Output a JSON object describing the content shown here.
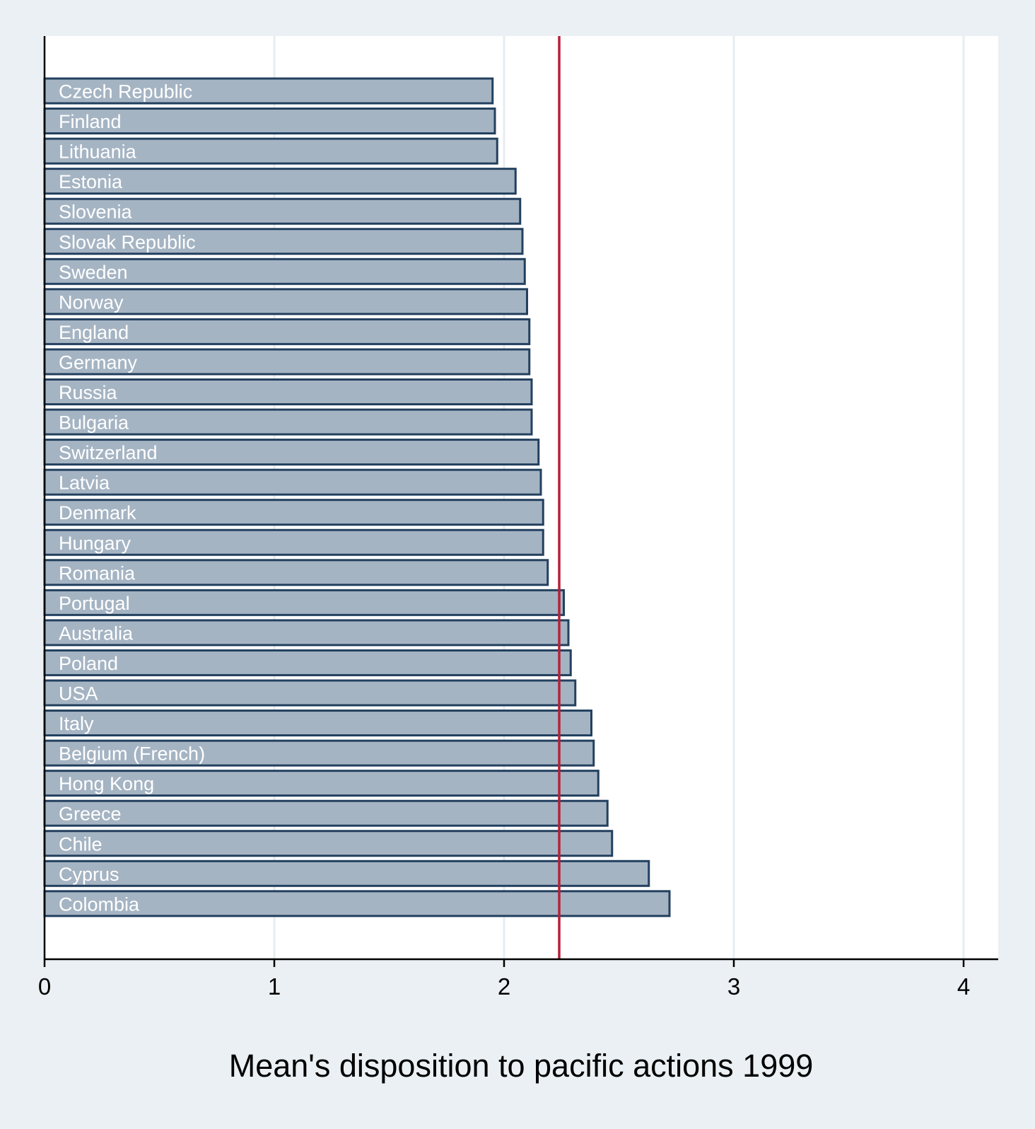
{
  "chart_data": {
    "type": "bar",
    "orientation": "horizontal",
    "title": "",
    "xlabel": "Mean's disposition to pacific actions 1999",
    "ylabel": "",
    "xlim": [
      0,
      4.15
    ],
    "xticks": [
      0,
      1,
      2,
      3,
      4
    ],
    "grid": true,
    "legend": "none",
    "reference_line": {
      "value": 2.24,
      "color": "#b5213a"
    },
    "categories": [
      "Czech Republic",
      "Finland",
      "Lithuania",
      "Estonia",
      "Slovenia",
      "Slovak Republic",
      "Sweden",
      "Norway",
      "England",
      "Germany",
      "Russia",
      "Bulgaria",
      "Switzerland",
      "Latvia",
      "Denmark",
      "Hungary",
      "Romania",
      "Portugal",
      "Australia",
      "Poland",
      "USA",
      "Italy",
      "Belgium (French)",
      "Hong Kong",
      "Greece",
      "Chile",
      "Cyprus",
      "Colombia"
    ],
    "values": [
      1.95,
      1.96,
      1.97,
      2.05,
      2.07,
      2.08,
      2.09,
      2.1,
      2.11,
      2.11,
      2.12,
      2.12,
      2.15,
      2.16,
      2.17,
      2.17,
      2.19,
      2.26,
      2.28,
      2.29,
      2.31,
      2.38,
      2.39,
      2.41,
      2.45,
      2.47,
      2.63,
      2.72
    ],
    "colors": {
      "bar_fill": "#a5b4c3",
      "bar_edge": "#23405f",
      "plot_background": "#ffffff",
      "figure_background": "#eaf0f3",
      "grid": "#e6edf1"
    }
  }
}
